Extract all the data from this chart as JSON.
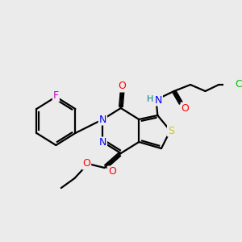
{
  "bg_color": "#ebebeb",
  "bond_color": "#000000",
  "atom_colors": {
    "F": "#cc00cc",
    "N": "#0000ff",
    "O": "#ff0000",
    "S": "#cccc00",
    "Cl": "#00bb00",
    "H": "#008080",
    "C": "#000000"
  },
  "figsize": [
    3.0,
    3.0
  ],
  "dpi": 100
}
